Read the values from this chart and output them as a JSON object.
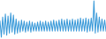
{
  "values": [
    8,
    -8,
    12,
    -5,
    15,
    -6,
    13,
    -4,
    16,
    -3,
    14,
    -5,
    10,
    -4,
    8,
    -3,
    9,
    -2,
    8,
    -3,
    7,
    -2,
    8,
    -3,
    7,
    -2,
    6,
    -2,
    7,
    -2,
    8,
    -2,
    7,
    -2,
    8,
    -2,
    7,
    -2,
    8,
    -2,
    9,
    -2,
    8,
    -2,
    9,
    -2,
    10,
    -2,
    9,
    -2,
    10,
    -2,
    9,
    -2,
    10,
    -2,
    9,
    -2,
    10,
    -2,
    11,
    -2,
    10,
    -2,
    11,
    -3,
    10,
    -2,
    11,
    -2,
    28,
    -4,
    16,
    -3,
    12,
    -2,
    10,
    -2,
    9,
    -2
  ],
  "line_color": "#3a9ad9",
  "background_color": "#ffffff",
  "linewidth": 0.75
}
